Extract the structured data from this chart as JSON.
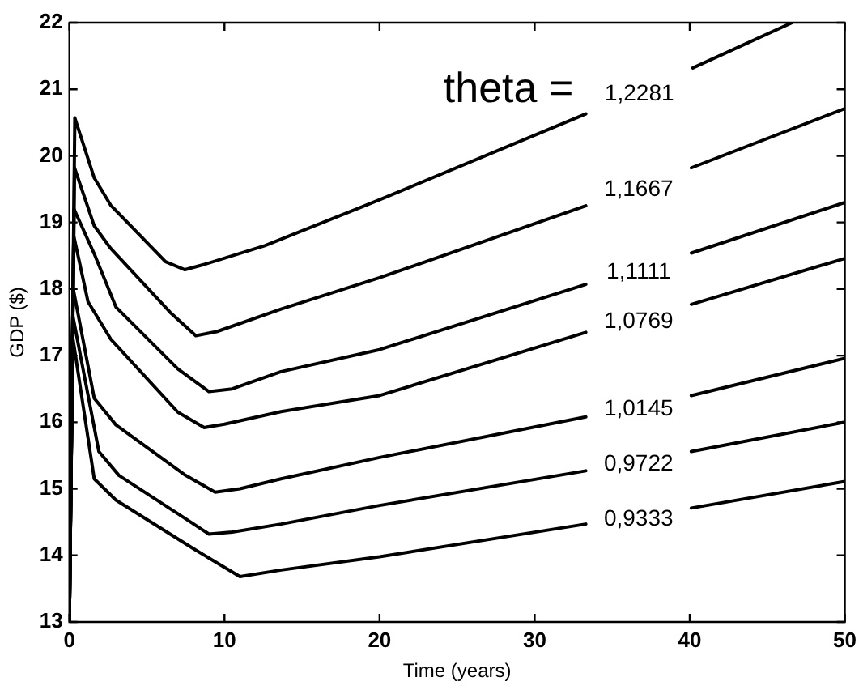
{
  "chart_data": {
    "type": "line",
    "xlabel": "Time (years)",
    "ylabel": "GDP ($)",
    "annotations": [
      "theta ="
    ],
    "xlim": [
      0,
      50
    ],
    "ylim": [
      13,
      22
    ],
    "xticks": [
      0,
      10,
      20,
      30,
      40,
      50
    ],
    "yticks": [
      13,
      14,
      15,
      16,
      17,
      18,
      19,
      20,
      21,
      22
    ],
    "grid": false,
    "legend": false,
    "marker": "none",
    "line_style": "solid",
    "series": [
      {
        "name": "1,2281",
        "color": "#000000",
        "x": [
          0,
          0.35,
          1.6,
          2.66,
          6.2,
          7.45,
          8.7,
          12.6,
          20,
          33.3,
          36.7,
          40.2,
          46.6
        ],
        "values": [
          13,
          20.57,
          19.67,
          19.26,
          18.41,
          18.29,
          18.37,
          18.65,
          19.34,
          20.63,
          null,
          21.32,
          22
        ]
      },
      {
        "name": "1,1667",
        "color": "#000000",
        "x": [
          0,
          0.33,
          1.6,
          2.66,
          6.5,
          8.15,
          9.5,
          13.65,
          20,
          33.3,
          36.7,
          40.1,
          50
        ],
        "values": [
          13,
          19.82,
          18.95,
          18.61,
          17.65,
          17.3,
          17.36,
          17.7,
          18.17,
          19.25,
          null,
          19.82,
          20.71
        ]
      },
      {
        "name": "1,1111",
        "color": "#000000",
        "x": [
          0,
          0.3,
          1.6,
          3,
          7,
          9,
          10.5,
          13.65,
          20,
          33.3,
          36.7,
          40.1,
          50
        ],
        "values": [
          13,
          19.2,
          18.53,
          17.73,
          16.8,
          16.46,
          16.5,
          16.76,
          17.09,
          18.07,
          null,
          18.54,
          19.3
        ]
      },
      {
        "name": "1,0769",
        "color": "#000000",
        "x": [
          0,
          0.28,
          1.2,
          2.66,
          7,
          8.7,
          10,
          13.65,
          20,
          33.3,
          36.7,
          40.1,
          50
        ],
        "values": [
          13,
          18.8,
          17.81,
          17.25,
          16.15,
          15.92,
          15.97,
          16.16,
          16.4,
          17.35,
          null,
          17.77,
          18.46
        ]
      },
      {
        "name": "1,0145",
        "color": "#000000",
        "x": [
          0,
          0.25,
          1.6,
          3,
          7.5,
          9.4,
          11,
          13.65,
          20,
          33.3,
          36.7,
          40.1,
          50
        ],
        "values": [
          13,
          18,
          16.36,
          15.96,
          15.2,
          14.95,
          15.0,
          15.15,
          15.47,
          16.08,
          null,
          16.4,
          16.96
        ]
      },
      {
        "name": "0,9722",
        "color": "#000000",
        "x": [
          0,
          0.22,
          1.9,
          3.2,
          7.5,
          9,
          10.5,
          13.65,
          20,
          33.3,
          36.7,
          40.1,
          50
        ],
        "values": [
          13,
          17.6,
          15.56,
          15.2,
          14.55,
          14.32,
          14.35,
          14.47,
          14.75,
          15.27,
          null,
          15.56,
          16
        ]
      },
      {
        "name": "0,9333",
        "color": "#000000",
        "x": [
          0,
          0.2,
          1.6,
          3,
          8,
          11,
          13.65,
          20,
          33.3,
          36.7,
          40.1,
          50
        ],
        "values": [
          13,
          17.3,
          15.15,
          14.83,
          14.1,
          13.68,
          13.78,
          13.98,
          14.47,
          null,
          14.71,
          15.11
        ]
      }
    ]
  }
}
